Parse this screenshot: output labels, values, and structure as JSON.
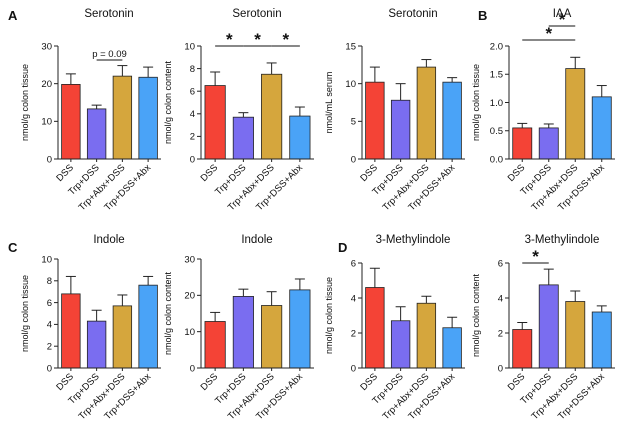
{
  "colors": [
    "#f44336",
    "#7a6df0",
    "#d5a63d",
    "#4aa3f7"
  ],
  "panel_labels": {
    "A": "A",
    "B": "B",
    "C": "C",
    "D": "D"
  },
  "chart_data": [
    {
      "type": "bar",
      "title": "Serotonin",
      "ylabel": "nmol/g colon tissue",
      "categories": [
        "DSS",
        "Trp+DSS",
        "Trp+Abx+DSS",
        "Trp+DSS+Abx"
      ],
      "values": [
        19.8,
        13.3,
        22.0,
        21.7
      ],
      "errors": [
        2.8,
        1.0,
        2.8,
        2.7
      ],
      "ylim": [
        0,
        30
      ],
      "yticks": [
        0,
        10,
        20,
        30
      ],
      "annotations": [
        {
          "from": 1,
          "to": 2,
          "text": "p = 0.09"
        }
      ]
    },
    {
      "type": "bar",
      "title": "Serotonin",
      "ylabel": "nmol/g colon content",
      "categories": [
        "DSS",
        "Trp+DSS",
        "Trp+Abx+DSS",
        "Trp+DSS+Abx"
      ],
      "values": [
        6.5,
        3.7,
        7.5,
        3.8
      ],
      "errors": [
        1.2,
        0.4,
        1.0,
        0.8
      ],
      "ylim": [
        0,
        10
      ],
      "yticks": [
        0,
        2,
        4,
        6,
        8,
        10
      ],
      "annotations": [
        {
          "from": 0,
          "to": 1,
          "text": "*"
        },
        {
          "from": 1,
          "to": 2,
          "text": "*"
        },
        {
          "from": 2,
          "to": 3,
          "text": "*"
        }
      ]
    },
    {
      "type": "bar",
      "title": "Serotonin",
      "ylabel": "nmol/mL serum",
      "categories": [
        "DSS",
        "Trp+DSS",
        "Trp+Abx+DSS",
        "Trp+DSS+Abx"
      ],
      "values": [
        10.2,
        7.8,
        12.2,
        10.2
      ],
      "errors": [
        2.0,
        2.2,
        1.0,
        0.6
      ],
      "ylim": [
        0,
        15
      ],
      "yticks": [
        0,
        5,
        10,
        15
      ],
      "annotations": []
    },
    {
      "type": "bar",
      "title": "IAA",
      "ylabel": "nmol/g colon tissue",
      "categories": [
        "DSS",
        "Trp+DSS",
        "Trp+Abx+DSS",
        "Trp+DSS+Abx"
      ],
      "values": [
        0.55,
        0.55,
        1.6,
        1.1
      ],
      "errors": [
        0.08,
        0.07,
        0.2,
        0.2
      ],
      "ylim": [
        0,
        2.0
      ],
      "yticks": [
        "0.0",
        "0.5",
        "1.0",
        "1.5",
        "2.0"
      ],
      "annotations": [
        {
          "from": 1,
          "to": 2,
          "text": "*"
        },
        {
          "from": 0,
          "to": 2,
          "text": "*"
        }
      ]
    },
    {
      "type": "bar",
      "title": "Indole",
      "ylabel": "nmol/g colon tissue",
      "categories": [
        "DSS",
        "Trp+DSS",
        "Trp+Abx+DSS",
        "Trp+DSS+Abx"
      ],
      "values": [
        6.8,
        4.3,
        5.7,
        7.6
      ],
      "errors": [
        1.6,
        1.0,
        1.0,
        0.8
      ],
      "ylim": [
        0,
        10
      ],
      "yticks": [
        0,
        2,
        4,
        6,
        8,
        10
      ],
      "annotations": []
    },
    {
      "type": "bar",
      "title": "Indole",
      "ylabel": "nmol/g colon content",
      "categories": [
        "DSS",
        "Trp+DSS",
        "Trp+Abx+DSS",
        "Trp+DSS+Abx"
      ],
      "values": [
        12.8,
        19.7,
        17.2,
        21.5
      ],
      "errors": [
        2.5,
        2.0,
        3.8,
        3.0
      ],
      "ylim": [
        0,
        30
      ],
      "yticks": [
        0,
        10,
        20,
        30
      ],
      "annotations": []
    },
    {
      "type": "bar",
      "title": "3-Methylindole",
      "ylabel": "nmol/g colon tissue",
      "categories": [
        "DSS",
        "Trp+DSS",
        "Trp+Abx+DSS",
        "Trp+DSS+Abx"
      ],
      "values": [
        4.6,
        2.7,
        3.7,
        2.3
      ],
      "errors": [
        1.1,
        0.8,
        0.4,
        0.6
      ],
      "ylim": [
        0,
        6
      ],
      "yticks": [
        0,
        2,
        4,
        6
      ],
      "annotations": []
    },
    {
      "type": "bar",
      "title": "3-Methylindole",
      "ylabel": "nmol/g colon content",
      "categories": [
        "DSS",
        "Trp+DSS",
        "Trp+Abx+DSS",
        "Trp+DSS+Abx"
      ],
      "values": [
        2.2,
        4.75,
        3.8,
        3.2
      ],
      "errors": [
        0.4,
        0.9,
        0.6,
        0.35
      ],
      "ylim": [
        0,
        6
      ],
      "yticks": [
        0,
        2,
        4,
        6
      ],
      "annotations": [
        {
          "from": 0,
          "to": 1,
          "text": "*"
        }
      ]
    }
  ]
}
